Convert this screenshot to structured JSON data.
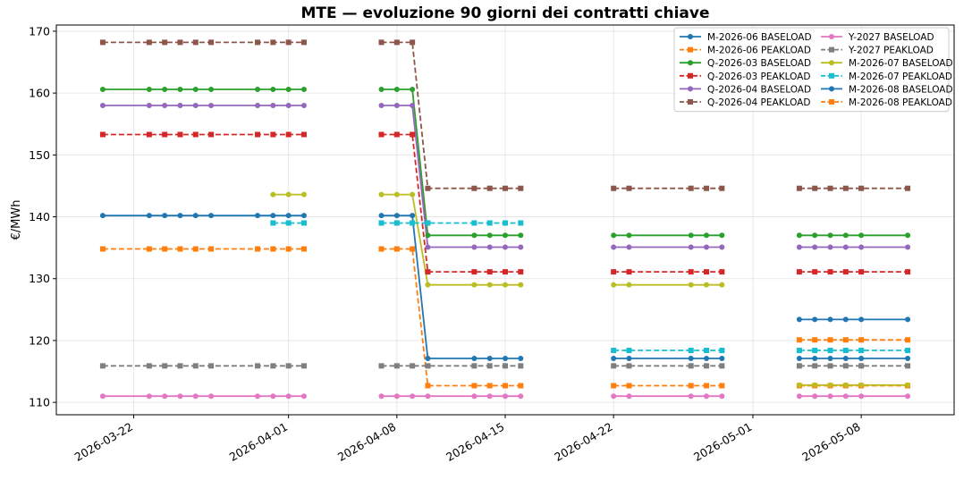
{
  "chart_data": {
    "type": "line",
    "title": "MTE — evoluzione 90 giorni dei contratti chiave",
    "xlabel": "",
    "ylabel": "€/MWh",
    "ylim": [
      108,
      171
    ],
    "xlim": [
      "2026-03-17",
      "2026-05-14"
    ],
    "yticks": [
      110,
      120,
      130,
      140,
      150,
      160,
      170
    ],
    "xticks": [
      "2026-03-22",
      "2026-04-01",
      "2026-04-08",
      "2026-04-15",
      "2026-04-22",
      "2026-05-01",
      "2026-05-08"
    ],
    "grid": true,
    "legend": {
      "position": "top-right",
      "columns": 2
    },
    "series_dates": [
      "2026-03-20",
      "2026-03-23",
      "2026-03-24",
      "2026-03-25",
      "2026-03-26",
      "2026-03-27",
      "2026-03-30",
      "2026-03-31",
      "2026-04-01",
      "2026-04-02",
      "2026-04-07",
      "2026-04-08",
      "2026-04-09",
      "2026-04-10",
      "2026-04-13",
      "2026-04-14",
      "2026-04-15",
      "2026-04-16",
      "2026-04-22",
      "2026-04-23",
      "2026-04-27",
      "2026-04-28",
      "2026-04-29",
      "2026-05-04",
      "2026-05-05",
      "2026-05-06",
      "2026-05-07",
      "2026-05-08",
      "2026-05-11"
    ],
    "series": [
      {
        "name": "M-2026-06 BASELOAD",
        "color": "#1f77b4",
        "dash": "solid",
        "marker": "circle",
        "values": [
          140.2,
          140.2,
          140.2,
          140.2,
          140.2,
          140.2,
          140.2,
          140.2,
          140.2,
          140.2,
          140.2,
          140.2,
          140.2,
          117.1,
          117.1,
          117.1,
          117.1,
          117.1,
          117.1,
          117.1,
          117.1,
          117.1,
          117.1,
          117.1,
          117.1,
          117.1,
          117.1,
          117.1,
          117.1
        ]
      },
      {
        "name": "M-2026-06 PEAKLOAD",
        "color": "#ff7f0e",
        "dash": "dashed",
        "marker": "square",
        "values": [
          134.8,
          134.8,
          134.8,
          134.8,
          134.8,
          134.8,
          134.8,
          134.8,
          134.8,
          134.8,
          134.8,
          134.8,
          134.8,
          112.7,
          112.7,
          112.7,
          112.7,
          112.7,
          112.7,
          112.7,
          112.7,
          112.7,
          112.7,
          112.7,
          112.7,
          112.7,
          112.7,
          112.7,
          112.7
        ]
      },
      {
        "name": "Q-2026-03 BASELOAD",
        "color": "#2ca02c",
        "dash": "solid",
        "marker": "circle",
        "values": [
          160.6,
          160.6,
          160.6,
          160.6,
          160.6,
          160.6,
          160.6,
          160.6,
          160.6,
          160.6,
          160.6,
          160.6,
          160.6,
          137.0,
          137.0,
          137.0,
          137.0,
          137.0,
          137.0,
          137.0,
          137.0,
          137.0,
          137.0,
          137.0,
          137.0,
          137.0,
          137.0,
          137.0,
          137.0
        ]
      },
      {
        "name": "Q-2026-03 PEAKLOAD",
        "color": "#d62728",
        "dash": "dashed",
        "marker": "square",
        "values": [
          153.3,
          153.3,
          153.3,
          153.3,
          153.3,
          153.3,
          153.3,
          153.3,
          153.3,
          153.3,
          153.3,
          153.3,
          153.3,
          131.1,
          131.1,
          131.1,
          131.1,
          131.1,
          131.1,
          131.1,
          131.1,
          131.1,
          131.1,
          131.1,
          131.1,
          131.1,
          131.1,
          131.1,
          131.1
        ]
      },
      {
        "name": "Q-2026-04 BASELOAD",
        "color": "#9467bd",
        "dash": "solid",
        "marker": "circle",
        "values": [
          158.0,
          158.0,
          158.0,
          158.0,
          158.0,
          158.0,
          158.0,
          158.0,
          158.0,
          158.0,
          158.0,
          158.0,
          158.0,
          135.1,
          135.1,
          135.1,
          135.1,
          135.1,
          135.1,
          135.1,
          135.1,
          135.1,
          135.1,
          135.1,
          135.1,
          135.1,
          135.1,
          135.1,
          135.1
        ]
      },
      {
        "name": "Q-2026-04 PEAKLOAD",
        "color": "#8c564b",
        "dash": "dashed",
        "marker": "square",
        "values": [
          168.2,
          168.2,
          168.2,
          168.2,
          168.2,
          168.2,
          168.2,
          168.2,
          168.2,
          168.2,
          168.2,
          168.2,
          168.2,
          144.6,
          144.6,
          144.6,
          144.6,
          144.6,
          144.6,
          144.6,
          144.6,
          144.6,
          144.6,
          144.6,
          144.6,
          144.6,
          144.6,
          144.6,
          144.6
        ]
      },
      {
        "name": "Y-2027 BASELOAD",
        "color": "#e377c2",
        "dash": "solid",
        "marker": "circle",
        "values": [
          111.0,
          111.0,
          111.0,
          111.0,
          111.0,
          111.0,
          111.0,
          111.0,
          111.0,
          111.0,
          111.0,
          111.0,
          111.0,
          111.0,
          111.0,
          111.0,
          111.0,
          111.0,
          111.0,
          111.0,
          111.0,
          111.0,
          111.0,
          111.0,
          111.0,
          111.0,
          111.0,
          111.0,
          111.0
        ]
      },
      {
        "name": "Y-2027 PEAKLOAD",
        "color": "#7f7f7f",
        "dash": "dashed",
        "marker": "square",
        "values": [
          115.9,
          115.9,
          115.9,
          115.9,
          115.9,
          115.9,
          115.9,
          115.9,
          115.9,
          115.9,
          115.9,
          115.9,
          115.9,
          115.9,
          115.9,
          115.9,
          115.9,
          115.9,
          115.9,
          115.9,
          115.9,
          115.9,
          115.9,
          115.9,
          115.9,
          115.9,
          115.9,
          115.9,
          115.9
        ]
      },
      {
        "name": "M-2026-07 BASELOAD",
        "color": "#bcbd22",
        "dash": "solid",
        "marker": "circle",
        "values": [
          null,
          null,
          null,
          null,
          null,
          null,
          null,
          143.6,
          143.6,
          143.6,
          143.6,
          143.6,
          143.6,
          129.0,
          129.0,
          129.0,
          129.0,
          129.0,
          129.0,
          129.0,
          129.0,
          129.0,
          129.0,
          112.8,
          112.8,
          112.8,
          112.8,
          112.8,
          112.8
        ]
      },
      {
        "name": "M-2026-07 PEAKLOAD",
        "color": "#17becf",
        "dash": "dashed",
        "marker": "square",
        "values": [
          null,
          null,
          null,
          null,
          null,
          null,
          null,
          139.0,
          139.0,
          139.0,
          139.0,
          139.0,
          139.0,
          139.0,
          139.0,
          139.0,
          139.0,
          139.0,
          118.4,
          118.4,
          118.4,
          118.4,
          118.4,
          118.4,
          118.4,
          118.4,
          118.4,
          118.4,
          118.4
        ]
      },
      {
        "name": "M-2026-08 BASELOAD",
        "color": "#1f77b4",
        "dash": "solid",
        "marker": "circle",
        "values": [
          null,
          null,
          null,
          null,
          null,
          null,
          null,
          null,
          null,
          null,
          null,
          null,
          null,
          null,
          null,
          null,
          null,
          null,
          null,
          null,
          null,
          null,
          null,
          123.4,
          123.4,
          123.4,
          123.4,
          123.4,
          123.4
        ]
      },
      {
        "name": "M-2026-08 PEAKLOAD",
        "color": "#ff7f0e",
        "dash": "dashed",
        "marker": "square",
        "values": [
          null,
          null,
          null,
          null,
          null,
          null,
          null,
          null,
          null,
          null,
          null,
          null,
          null,
          null,
          null,
          null,
          null,
          null,
          null,
          null,
          null,
          null,
          null,
          120.1,
          120.1,
          120.1,
          120.1,
          120.1,
          120.1
        ]
      }
    ]
  }
}
